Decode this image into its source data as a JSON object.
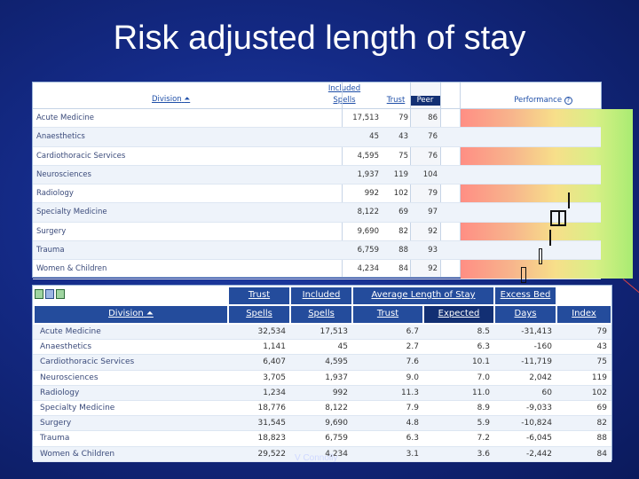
{
  "slide": {
    "title": "Risk adjusted length of stay",
    "author": "V Connolly"
  },
  "top_table": {
    "headers": {
      "division": "Division",
      "included": "Included",
      "spells": "Spells",
      "trust": "Trust",
      "peer": "Peer",
      "performance": "Performance"
    },
    "rows": [
      {
        "division": "Acute Medicine",
        "spells": "17,513",
        "trust": "79",
        "peer": "86"
      },
      {
        "division": "Anaesthetics",
        "spells": "45",
        "trust": "43",
        "peer": "76"
      },
      {
        "division": "Cardiothoracic Services",
        "spells": "4,595",
        "trust": "75",
        "peer": "76"
      },
      {
        "division": "Neurosciences",
        "spells": "1,937",
        "trust": "119",
        "peer": "104"
      },
      {
        "division": "Radiology",
        "spells": "992",
        "trust": "102",
        "peer": "79"
      },
      {
        "division": "Specialty Medicine",
        "spells": "8,122",
        "trust": "69",
        "peer": "97"
      },
      {
        "division": "Surgery",
        "spells": "9,690",
        "trust": "82",
        "peer": "92"
      },
      {
        "division": "Trauma",
        "spells": "6,759",
        "trust": "88",
        "peer": "93"
      },
      {
        "division": "Women & Children",
        "spells": "4,234",
        "trust": "84",
        "peer": "92"
      }
    ]
  },
  "bottom_table": {
    "headers": {
      "trust": "Trust",
      "included": "Included",
      "avg_los": "Average Length of Stay",
      "excess_bed": "Excess Bed",
      "division": "Division",
      "spells": "Spells",
      "inc_spells": "Spells",
      "los_trust": "Trust",
      "expected": "Expected",
      "days": "Days",
      "index": "Index"
    },
    "rows": [
      {
        "division": "Acute Medicine",
        "trust_spells": "32,534",
        "included_spells": "17,513",
        "los_trust": "6.7",
        "expected": "8.5",
        "days": "-31,413",
        "index": "79"
      },
      {
        "division": "Anaesthetics",
        "trust_spells": "1,141",
        "included_spells": "45",
        "los_trust": "2.7",
        "expected": "6.3",
        "days": "-160",
        "index": "43"
      },
      {
        "division": "Cardiothoracic Services",
        "trust_spells": "6,407",
        "included_spells": "4,595",
        "los_trust": "7.6",
        "expected": "10.1",
        "days": "-11,719",
        "index": "75"
      },
      {
        "division": "Neurosciences",
        "trust_spells": "3,705",
        "included_spells": "1,937",
        "los_trust": "9.0",
        "expected": "7.0",
        "days": "2,042",
        "index": "119"
      },
      {
        "division": "Radiology",
        "trust_spells": "1,234",
        "included_spells": "992",
        "los_trust": "11.3",
        "expected": "11.0",
        "days": "60",
        "index": "102"
      },
      {
        "division": "Specialty Medicine",
        "trust_spells": "18,776",
        "included_spells": "8,122",
        "los_trust": "7.9",
        "expected": "8.9",
        "days": "-9,033",
        "index": "69"
      },
      {
        "division": "Surgery",
        "trust_spells": "31,545",
        "included_spells": "9,690",
        "los_trust": "4.8",
        "expected": "5.9",
        "days": "-10,824",
        "index": "82"
      },
      {
        "division": "Trauma",
        "trust_spells": "18,823",
        "included_spells": "6,759",
        "los_trust": "6.3",
        "expected": "7.2",
        "days": "-6,045",
        "index": "88"
      },
      {
        "division": "Women & Children",
        "trust_spells": "29,522",
        "included_spells": "4,234",
        "los_trust": "3.1",
        "expected": "3.6",
        "days": "-2,442",
        "index": "84"
      }
    ]
  },
  "colors": {
    "background": "#142a86",
    "header_blue": "#244c9c",
    "header_dark": "#122f73",
    "perf_red": "#ff8e84",
    "perf_green": "#a9ec72"
  },
  "icons": [
    "excel-icon",
    "word-icon",
    "print-icon"
  ]
}
